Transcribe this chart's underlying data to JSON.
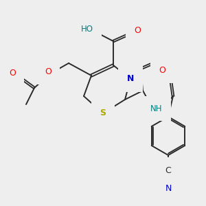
{
  "bg_color": "#eeeeee",
  "bond_color": "#2a2a2a",
  "colors": {
    "O": "#ff0000",
    "N": "#0000cc",
    "S": "#aaaa00",
    "HO": "#008080",
    "H": "#008080",
    "C": "#2a2a2a"
  },
  "figsize": [
    3.0,
    3.0
  ],
  "dpi": 100
}
